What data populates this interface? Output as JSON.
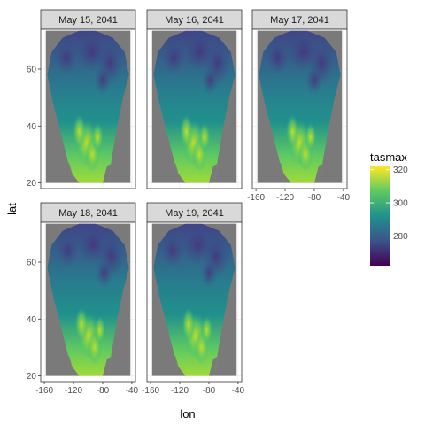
{
  "chart_data": {
    "type": "heatmap",
    "facet_titles": [
      "May 15, 2041",
      "May 16, 2041",
      "May 17, 2041",
      "May 18, 2041",
      "May 19, 2041"
    ],
    "xlabel": "lon",
    "ylabel": "lat",
    "xlim": [
      -165,
      -35
    ],
    "ylim": [
      18,
      74
    ],
    "x_ticks": [
      -160,
      -120,
      -80,
      -40
    ],
    "y_ticks": [
      20,
      40,
      60
    ],
    "x_tick_labels": [
      "-160",
      "-120",
      "-80",
      "-40"
    ],
    "y_tick_labels": [
      "20",
      "40",
      "60"
    ],
    "legend": {
      "title": "tasmax",
      "range": [
        262,
        322
      ],
      "ticks": [
        280,
        300,
        320
      ],
      "tick_labels": [
        "280",
        "300",
        "320"
      ],
      "colors": [
        "#440154",
        "#3b528b",
        "#21918c",
        "#5ec962",
        "#fde725"
      ],
      "placement": "right"
    },
    "panel_background": "#7a7a7a",
    "grid": true
  }
}
